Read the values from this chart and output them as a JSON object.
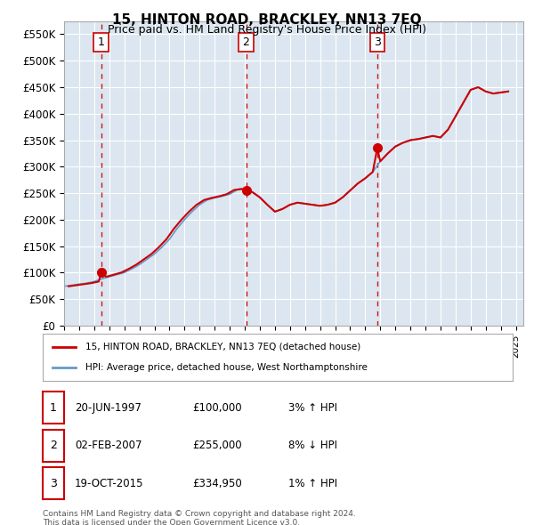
{
  "title": "15, HINTON ROAD, BRACKLEY, NN13 7EQ",
  "subtitle": "Price paid vs. HM Land Registry's House Price Index (HPI)",
  "background_color": "#dce6f0",
  "plot_bg_color": "#dce6f0",
  "y_ticks": [
    0,
    50000,
    100000,
    150000,
    200000,
    250000,
    300000,
    350000,
    400000,
    450000,
    500000,
    550000
  ],
  "y_tick_labels": [
    "£0",
    "£50K",
    "£100K",
    "£150K",
    "£200K",
    "£250K",
    "£300K",
    "£350K",
    "£400K",
    "£450K",
    "£500K",
    "£550K"
  ],
  "x_min": 1995.0,
  "x_max": 2025.5,
  "y_min": 0,
  "y_max": 575000,
  "sale_color": "#cc0000",
  "hpi_color": "#6699cc",
  "dashed_line_color": "#cc0000",
  "transactions": [
    {
      "num": 1,
      "date_str": "20-JUN-1997",
      "x": 1997.47,
      "price": 100000,
      "hpi_pct": "3%",
      "hpi_dir": "↑"
    },
    {
      "num": 2,
      "date_str": "02-FEB-2007",
      "x": 2007.09,
      "price": 255000,
      "hpi_pct": "8%",
      "hpi_dir": "↓"
    },
    {
      "num": 3,
      "date_str": "19-OCT-2015",
      "x": 2015.8,
      "price": 334950,
      "hpi_pct": "1%",
      "hpi_dir": "↑"
    }
  ],
  "legend_label_sale": "15, HINTON ROAD, BRACKLEY, NN13 7EQ (detached house)",
  "legend_label_hpi": "HPI: Average price, detached house, West Northamptonshire",
  "footer": "Contains HM Land Registry data © Crown copyright and database right 2024.\nThis data is licensed under the Open Government Licence v3.0.",
  "hpi_series_x": [
    1995.0,
    1995.5,
    1996.0,
    1996.5,
    1997.0,
    1997.5,
    1998.0,
    1998.5,
    1999.0,
    1999.5,
    2000.0,
    2000.5,
    2001.0,
    2001.5,
    2002.0,
    2002.5,
    2003.0,
    2003.5,
    2004.0,
    2004.5,
    2005.0,
    2005.5,
    2006.0,
    2006.5,
    2007.0,
    2007.5,
    2008.0,
    2008.5,
    2009.0,
    2009.5,
    2010.0,
    2010.5,
    2011.0,
    2011.5,
    2012.0,
    2012.5,
    2013.0,
    2013.5,
    2014.0,
    2014.5,
    2015.0,
    2015.5,
    2016.0,
    2016.5,
    2017.0,
    2017.5,
    2018.0,
    2018.5,
    2019.0,
    2019.5,
    2020.0,
    2020.5,
    2021.0,
    2021.5,
    2022.0,
    2022.5,
    2023.0,
    2023.5,
    2024.0,
    2024.5
  ],
  "hpi_series_y": [
    74000,
    76000,
    78000,
    80000,
    83000,
    88000,
    92000,
    96000,
    100000,
    107000,
    115000,
    125000,
    135000,
    148000,
    163000,
    183000,
    200000,
    215000,
    228000,
    237000,
    241000,
    244000,
    248000,
    256000,
    258000,
    252000,
    242000,
    228000,
    215000,
    220000,
    228000,
    232000,
    230000,
    228000,
    226000,
    228000,
    232000,
    242000,
    255000,
    268000,
    278000,
    290000,
    310000,
    325000,
    338000,
    345000,
    350000,
    352000,
    355000,
    358000,
    355000,
    370000,
    395000,
    420000,
    445000,
    450000,
    442000,
    438000,
    440000,
    442000
  ],
  "sale_series_x": [
    1995.3,
    1995.8,
    1996.3,
    1996.8,
    1997.3,
    1997.47,
    1997.8,
    1998.3,
    1998.8,
    1999.3,
    1999.8,
    2000.3,
    2000.8,
    2001.3,
    2001.8,
    2002.3,
    2002.8,
    2003.3,
    2003.8,
    2004.3,
    2004.8,
    2005.3,
    2005.8,
    2006.3,
    2006.8,
    2007.09,
    2007.5,
    2008.0,
    2008.5,
    2009.0,
    2009.5,
    2010.0,
    2010.5,
    2011.0,
    2011.5,
    2012.0,
    2012.5,
    2013.0,
    2013.5,
    2014.0,
    2014.5,
    2015.0,
    2015.5,
    2015.8,
    2016.0,
    2016.5,
    2017.0,
    2017.5,
    2018.0,
    2018.5,
    2019.0,
    2019.5,
    2020.0,
    2020.5,
    2021.0,
    2021.5,
    2022.0,
    2022.5,
    2023.0,
    2023.5,
    2024.0,
    2024.5
  ],
  "sale_series_y": [
    74000,
    76000,
    78000,
    80000,
    83000,
    100000,
    92000,
    96000,
    100000,
    107000,
    115000,
    125000,
    135000,
    148000,
    163000,
    183000,
    200000,
    215000,
    228000,
    237000,
    241000,
    244000,
    248000,
    256000,
    258000,
    255000,
    252000,
    242000,
    228000,
    215000,
    220000,
    228000,
    232000,
    230000,
    228000,
    226000,
    228000,
    232000,
    242000,
    255000,
    268000,
    278000,
    290000,
    334950,
    310000,
    325000,
    338000,
    345000,
    350000,
    352000,
    355000,
    358000,
    355000,
    370000,
    395000,
    420000,
    445000,
    450000,
    442000,
    438000,
    440000,
    442000
  ]
}
